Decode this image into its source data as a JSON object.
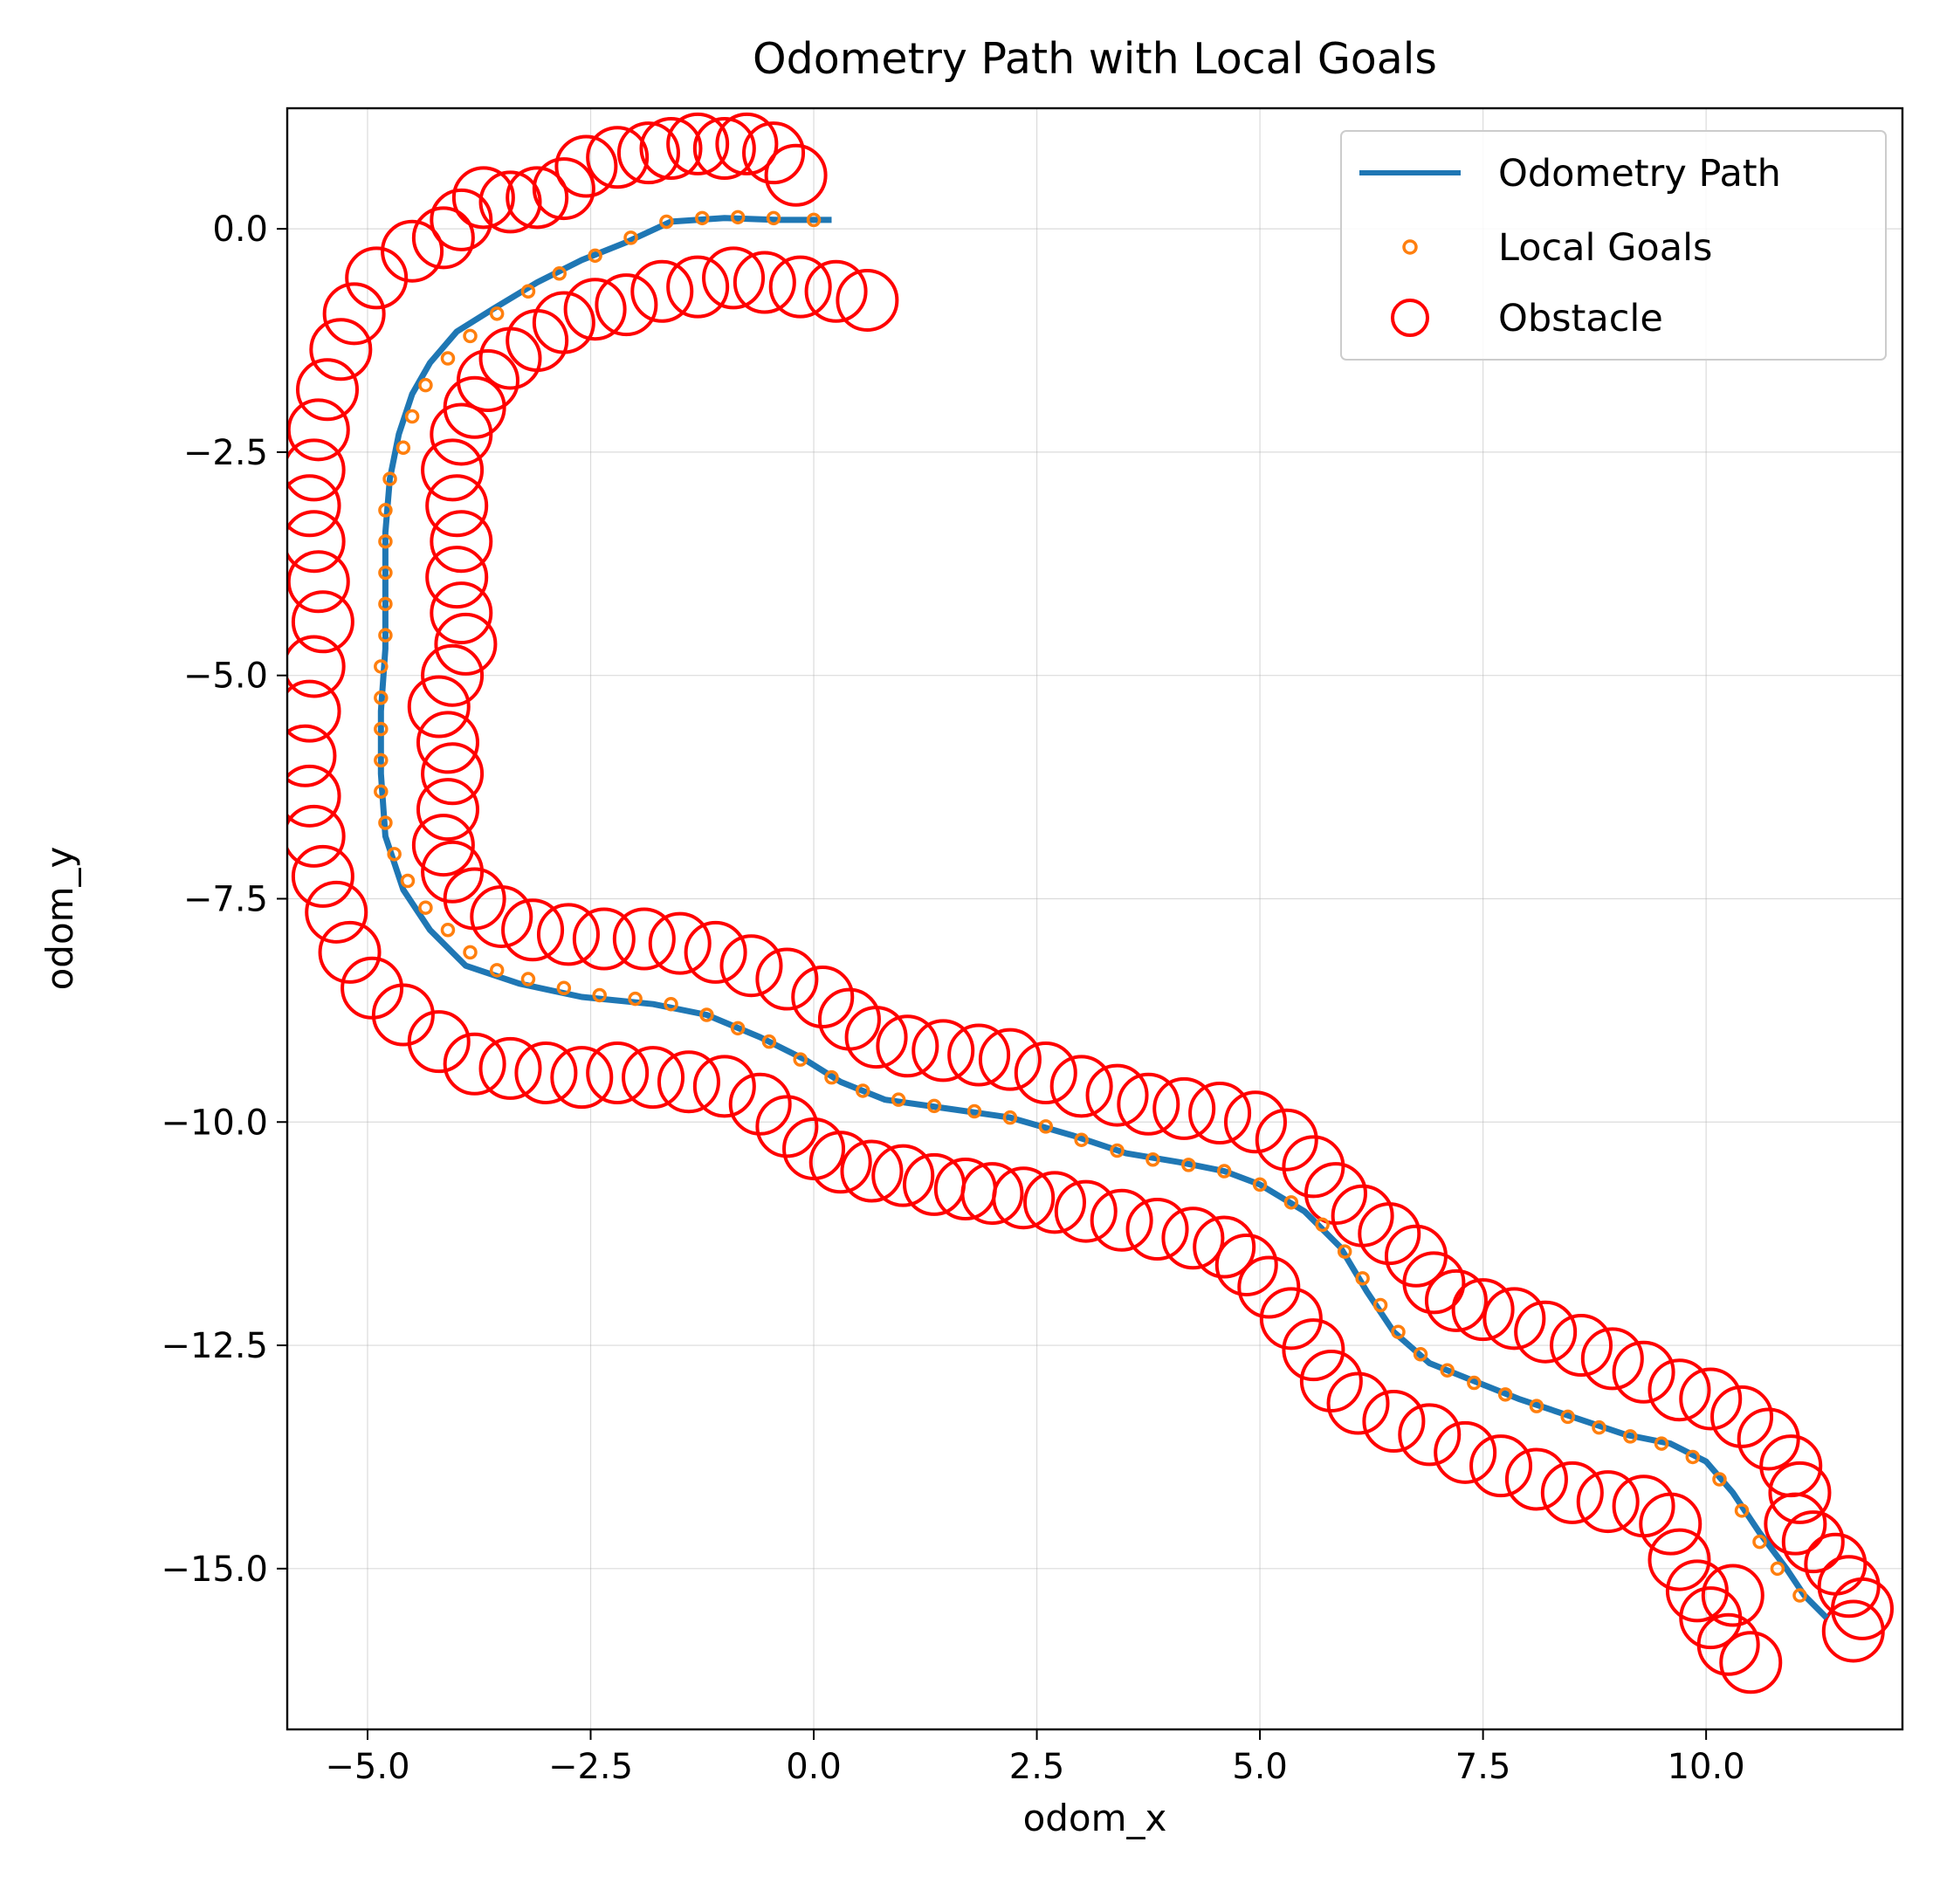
{
  "chart_data": {
    "type": "scatter",
    "title": "Odometry Path with Local Goals",
    "xlabel": "odom_x",
    "ylabel": "odom_y",
    "xlim": [
      -5.9,
      12.2
    ],
    "ylim": [
      -16.8,
      1.35
    ],
    "grid": true,
    "legend_position": "top-right",
    "x_ticks": [
      -5.0,
      -2.5,
      0.0,
      2.5,
      5.0,
      7.5,
      10.0
    ],
    "x_tick_labels": [
      "−5.0",
      "−2.5",
      "0.0",
      "2.5",
      "5.0",
      "7.5",
      "10.0"
    ],
    "y_ticks": [
      0.0,
      -2.5,
      -5.0,
      -7.5,
      -10.0,
      -12.5,
      -15.0
    ],
    "y_tick_labels": [
      "0.0",
      "−2.5",
      "−5.0",
      "−7.5",
      "−10.0",
      "−12.5",
      "−15.0"
    ],
    "colors": {
      "path": "#1f77b4",
      "goals": "#ff7f0e",
      "obstacle": "#ff0000"
    },
    "series": [
      {
        "name": "Odometry Path",
        "style": "line",
        "points": [
          [
            0.2,
            0.1
          ],
          [
            -0.4,
            0.1
          ],
          [
            -1.0,
            0.12
          ],
          [
            -1.6,
            0.08
          ],
          [
            -2.1,
            -0.15
          ],
          [
            -2.6,
            -0.35
          ],
          [
            -3.1,
            -0.6
          ],
          [
            -3.6,
            -0.9
          ],
          [
            -4.0,
            -1.15
          ],
          [
            -4.3,
            -1.5
          ],
          [
            -4.5,
            -1.85
          ],
          [
            -4.65,
            -2.3
          ],
          [
            -4.75,
            -2.8
          ],
          [
            -4.8,
            -3.4
          ],
          [
            -4.8,
            -4.0
          ],
          [
            -4.8,
            -4.7
          ],
          [
            -4.85,
            -5.4
          ],
          [
            -4.85,
            -6.1
          ],
          [
            -4.8,
            -6.8
          ],
          [
            -4.6,
            -7.4
          ],
          [
            -4.3,
            -7.85
          ],
          [
            -3.9,
            -8.25
          ],
          [
            -3.3,
            -8.45
          ],
          [
            -2.6,
            -8.6
          ],
          [
            -1.8,
            -8.68
          ],
          [
            -1.2,
            -8.8
          ],
          [
            -0.6,
            -9.05
          ],
          [
            -0.1,
            -9.3
          ],
          [
            0.3,
            -9.55
          ],
          [
            0.8,
            -9.75
          ],
          [
            1.5,
            -9.85
          ],
          [
            2.2,
            -9.95
          ],
          [
            2.9,
            -10.15
          ],
          [
            3.5,
            -10.35
          ],
          [
            4.1,
            -10.45
          ],
          [
            4.6,
            -10.55
          ],
          [
            5.0,
            -10.7
          ],
          [
            5.5,
            -11.0
          ],
          [
            5.9,
            -11.4
          ],
          [
            6.2,
            -11.9
          ],
          [
            6.5,
            -12.35
          ],
          [
            6.9,
            -12.7
          ],
          [
            7.4,
            -12.9
          ],
          [
            7.9,
            -13.1
          ],
          [
            8.5,
            -13.3
          ],
          [
            9.1,
            -13.5
          ],
          [
            9.6,
            -13.6
          ],
          [
            10.0,
            -13.8
          ],
          [
            10.3,
            -14.15
          ],
          [
            10.6,
            -14.6
          ],
          [
            10.9,
            -15.0
          ],
          [
            11.1,
            -15.3
          ],
          [
            11.35,
            -15.55
          ]
        ]
      },
      {
        "name": "Local Goals",
        "style": "points",
        "points": [
          [
            0.0,
            0.1
          ],
          [
            -0.45,
            0.12
          ],
          [
            -0.85,
            0.13
          ],
          [
            -1.25,
            0.12
          ],
          [
            -1.65,
            0.08
          ],
          [
            -2.05,
            -0.1
          ],
          [
            -2.45,
            -0.3
          ],
          [
            -2.85,
            -0.5
          ],
          [
            -3.2,
            -0.7
          ],
          [
            -3.55,
            -0.95
          ],
          [
            -3.85,
            -1.2
          ],
          [
            -4.1,
            -1.45
          ],
          [
            -4.35,
            -1.75
          ],
          [
            -4.5,
            -2.1
          ],
          [
            -4.6,
            -2.45
          ],
          [
            -4.75,
            -2.8
          ],
          [
            -4.8,
            -3.15
          ],
          [
            -4.8,
            -3.5
          ],
          [
            -4.8,
            -3.85
          ],
          [
            -4.8,
            -4.2
          ],
          [
            -4.8,
            -4.55
          ],
          [
            -4.85,
            -4.9
          ],
          [
            -4.85,
            -5.25
          ],
          [
            -4.85,
            -5.6
          ],
          [
            -4.85,
            -5.95
          ],
          [
            -4.85,
            -6.3
          ],
          [
            -4.8,
            -6.65
          ],
          [
            -4.7,
            -7.0
          ],
          [
            -4.55,
            -7.3
          ],
          [
            -4.35,
            -7.6
          ],
          [
            -4.1,
            -7.85
          ],
          [
            -3.85,
            -8.1
          ],
          [
            -3.55,
            -8.3
          ],
          [
            -3.2,
            -8.4
          ],
          [
            -2.8,
            -8.5
          ],
          [
            -2.4,
            -8.58
          ],
          [
            -2.0,
            -8.62
          ],
          [
            -1.6,
            -8.68
          ],
          [
            -1.2,
            -8.8
          ],
          [
            -0.85,
            -8.95
          ],
          [
            -0.5,
            -9.1
          ],
          [
            -0.15,
            -9.3
          ],
          [
            0.2,
            -9.5
          ],
          [
            0.55,
            -9.65
          ],
          [
            0.95,
            -9.75
          ],
          [
            1.35,
            -9.82
          ],
          [
            1.8,
            -9.88
          ],
          [
            2.2,
            -9.95
          ],
          [
            2.6,
            -10.05
          ],
          [
            3.0,
            -10.2
          ],
          [
            3.4,
            -10.32
          ],
          [
            3.8,
            -10.42
          ],
          [
            4.2,
            -10.48
          ],
          [
            4.6,
            -10.55
          ],
          [
            5.0,
            -10.7
          ],
          [
            5.35,
            -10.9
          ],
          [
            5.7,
            -11.15
          ],
          [
            5.95,
            -11.45
          ],
          [
            6.15,
            -11.75
          ],
          [
            6.35,
            -12.05
          ],
          [
            6.55,
            -12.35
          ],
          [
            6.8,
            -12.6
          ],
          [
            7.1,
            -12.78
          ],
          [
            7.4,
            -12.92
          ],
          [
            7.75,
            -13.05
          ],
          [
            8.1,
            -13.18
          ],
          [
            8.45,
            -13.3
          ],
          [
            8.8,
            -13.42
          ],
          [
            9.15,
            -13.52
          ],
          [
            9.5,
            -13.6
          ],
          [
            9.85,
            -13.75
          ],
          [
            10.15,
            -14.0
          ],
          [
            10.4,
            -14.35
          ],
          [
            10.6,
            -14.7
          ],
          [
            10.8,
            -15.0
          ],
          [
            11.05,
            -15.3
          ]
        ]
      },
      {
        "name": "Obstacle",
        "style": "circles",
        "points": [
          [
            -0.2,
            0.6
          ],
          [
            -0.45,
            0.85
          ],
          [
            -0.75,
            0.95
          ],
          [
            -1.0,
            0.9
          ],
          [
            -1.3,
            0.95
          ],
          [
            -1.6,
            0.9
          ],
          [
            -1.85,
            0.85
          ],
          [
            -2.2,
            0.8
          ],
          [
            -2.55,
            0.7
          ],
          [
            -2.8,
            0.45
          ],
          [
            -3.1,
            0.35
          ],
          [
            -3.4,
            0.3
          ],
          [
            -3.7,
            0.35
          ],
          [
            -3.95,
            0.1
          ],
          [
            -4.15,
            -0.1
          ],
          [
            -4.5,
            -0.25
          ],
          [
            -4.9,
            -0.55
          ],
          [
            -5.15,
            -0.95
          ],
          [
            -5.3,
            -1.35
          ],
          [
            -5.45,
            -1.8
          ],
          [
            -5.55,
            -2.25
          ],
          [
            -5.6,
            -2.7
          ],
          [
            -5.65,
            -3.1
          ],
          [
            -5.6,
            -3.5
          ],
          [
            -5.55,
            -3.95
          ],
          [
            -5.5,
            -4.4
          ],
          [
            -5.6,
            -4.9
          ],
          [
            -5.65,
            -5.4
          ],
          [
            -5.7,
            -5.9
          ],
          [
            -5.65,
            -6.35
          ],
          [
            -5.6,
            -6.8
          ],
          [
            -5.5,
            -7.25
          ],
          [
            -5.35,
            -7.65
          ],
          [
            -5.2,
            -8.1
          ],
          [
            -4.95,
            -8.5
          ],
          [
            -4.6,
            -8.8
          ],
          [
            -4.2,
            -9.1
          ],
          [
            -3.8,
            -9.35
          ],
          [
            -3.4,
            -9.4
          ],
          [
            -3.0,
            -9.45
          ],
          [
            -2.6,
            -9.5
          ],
          [
            -2.2,
            -9.45
          ],
          [
            -1.8,
            -9.5
          ],
          [
            -1.4,
            -9.55
          ],
          [
            -1.0,
            -9.6
          ],
          [
            -0.6,
            -9.8
          ],
          [
            -0.3,
            -10.05
          ],
          [
            0.0,
            -10.3
          ],
          [
            0.3,
            -10.45
          ],
          [
            0.65,
            -10.55
          ],
          [
            1.0,
            -10.6
          ],
          [
            1.35,
            -10.7
          ],
          [
            1.7,
            -10.75
          ],
          [
            2.0,
            -10.8
          ],
          [
            2.35,
            -10.85
          ],
          [
            2.7,
            -10.9
          ],
          [
            3.05,
            -11.0
          ],
          [
            3.45,
            -11.1
          ],
          [
            3.85,
            -11.2
          ],
          [
            4.25,
            -11.3
          ],
          [
            4.6,
            -11.4
          ],
          [
            4.85,
            -11.6
          ],
          [
            5.1,
            -11.85
          ],
          [
            5.35,
            -12.2
          ],
          [
            5.6,
            -12.55
          ],
          [
            5.8,
            -12.9
          ],
          [
            6.1,
            -13.15
          ],
          [
            6.5,
            -13.35
          ],
          [
            6.9,
            -13.5
          ],
          [
            7.3,
            -13.7
          ],
          [
            7.7,
            -13.85
          ],
          [
            8.1,
            -14.0
          ],
          [
            8.5,
            -14.15
          ],
          [
            8.9,
            -14.25
          ],
          [
            9.3,
            -14.3
          ],
          [
            9.6,
            -14.5
          ],
          [
            9.7,
            -14.9
          ],
          [
            9.9,
            -15.25
          ],
          [
            10.05,
            -15.55
          ],
          [
            10.25,
            -15.85
          ],
          [
            10.5,
            -16.05
          ],
          [
            10.3,
            -15.3
          ],
          [
            0.6,
            -0.8
          ],
          [
            0.25,
            -0.7
          ],
          [
            -0.15,
            -0.65
          ],
          [
            -0.55,
            -0.6
          ],
          [
            -0.9,
            -0.55
          ],
          [
            -1.3,
            -0.65
          ],
          [
            -1.7,
            -0.7
          ],
          [
            -2.1,
            -0.85
          ],
          [
            -2.45,
            -0.9
          ],
          [
            -2.8,
            -1.05
          ],
          [
            -3.1,
            -1.25
          ],
          [
            -3.4,
            -1.45
          ],
          [
            -3.65,
            -1.7
          ],
          [
            -3.8,
            -2.0
          ],
          [
            -3.95,
            -2.3
          ],
          [
            -4.05,
            -2.7
          ],
          [
            -4.0,
            -3.1
          ],
          [
            -3.95,
            -3.5
          ],
          [
            -4.0,
            -3.9
          ],
          [
            -3.95,
            -4.3
          ],
          [
            -3.9,
            -4.65
          ],
          [
            -4.05,
            -5.0
          ],
          [
            -4.2,
            -5.35
          ],
          [
            -4.1,
            -5.75
          ],
          [
            -4.05,
            -6.1
          ],
          [
            -4.1,
            -6.5
          ],
          [
            -4.15,
            -6.9
          ],
          [
            -4.05,
            -7.2
          ],
          [
            -3.8,
            -7.5
          ],
          [
            -3.5,
            -7.7
          ],
          [
            -3.15,
            -7.85
          ],
          [
            -2.75,
            -7.9
          ],
          [
            -2.35,
            -7.95
          ],
          [
            -1.9,
            -7.95
          ],
          [
            -1.5,
            -8.0
          ],
          [
            -1.1,
            -8.1
          ],
          [
            -0.7,
            -8.25
          ],
          [
            -0.3,
            -8.4
          ],
          [
            0.1,
            -8.6
          ],
          [
            0.4,
            -8.85
          ],
          [
            0.7,
            -9.05
          ],
          [
            1.05,
            -9.15
          ],
          [
            1.45,
            -9.2
          ],
          [
            1.85,
            -9.25
          ],
          [
            2.2,
            -9.3
          ],
          [
            2.6,
            -9.45
          ],
          [
            3.0,
            -9.6
          ],
          [
            3.4,
            -9.7
          ],
          [
            3.75,
            -9.8
          ],
          [
            4.15,
            -9.85
          ],
          [
            4.55,
            -9.9
          ],
          [
            4.95,
            -10.0
          ],
          [
            5.3,
            -10.2
          ],
          [
            5.6,
            -10.5
          ],
          [
            5.85,
            -10.8
          ],
          [
            6.15,
            -11.05
          ],
          [
            6.45,
            -11.25
          ],
          [
            6.75,
            -11.5
          ],
          [
            6.95,
            -11.8
          ],
          [
            7.2,
            -12.0
          ],
          [
            7.5,
            -12.1
          ],
          [
            7.85,
            -12.2
          ],
          [
            8.2,
            -12.35
          ],
          [
            8.6,
            -12.5
          ],
          [
            8.95,
            -12.65
          ],
          [
            9.3,
            -12.8
          ],
          [
            9.7,
            -13.0
          ],
          [
            10.05,
            -13.1
          ],
          [
            10.4,
            -13.3
          ],
          [
            10.7,
            -13.55
          ],
          [
            10.95,
            -13.85
          ],
          [
            11.05,
            -14.15
          ],
          [
            11.0,
            -14.5
          ],
          [
            11.2,
            -14.7
          ],
          [
            11.45,
            -14.95
          ],
          [
            11.6,
            -15.2
          ],
          [
            11.75,
            -15.45
          ],
          [
            11.65,
            -15.7
          ]
        ]
      }
    ]
  }
}
